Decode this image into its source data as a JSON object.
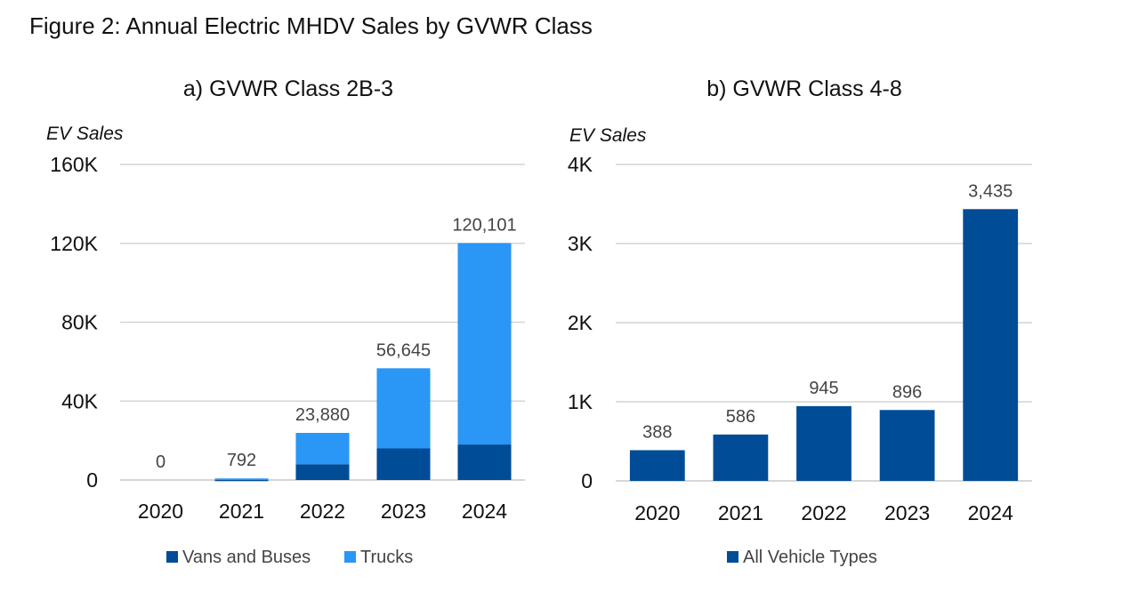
{
  "figure_title": "Figure 2: Annual Electric MHDV Sales by GVWR Class",
  "colors": {
    "vans_and_buses": "#004c97",
    "trucks": "#2a96f5",
    "all_vehicle_types": "#004c97"
  },
  "chart_data": [
    {
      "type": "bar",
      "stacked": true,
      "title": "a) GVWR Class 2B-3",
      "ylabel": "EV Sales",
      "xlabel": "",
      "categories": [
        "2020",
        "2021",
        "2022",
        "2023",
        "2024"
      ],
      "ylim": [
        0,
        160000
      ],
      "yticks": [
        0,
        40000,
        80000,
        120000,
        160000
      ],
      "ytick_labels": [
        "0",
        "40K",
        "80K",
        "120K",
        "160K"
      ],
      "series": [
        {
          "name": "Vans and Buses",
          "values": [
            0,
            100,
            8000,
            16000,
            18000
          ]
        },
        {
          "name": "Trucks",
          "values": [
            0,
            692,
            15880,
            40645,
            102101
          ]
        }
      ],
      "totals": [
        0,
        792,
        23880,
        56645,
        120101
      ],
      "total_labels": [
        "0",
        "792",
        "23,880",
        "56,645",
        "120,101"
      ],
      "grid": true,
      "legend": "bottom"
    },
    {
      "type": "bar",
      "title": "b) GVWR Class 4-8",
      "ylabel": "EV Sales",
      "xlabel": "",
      "categories": [
        "2020",
        "2021",
        "2022",
        "2023",
        "2024"
      ],
      "ylim": [
        0,
        4000
      ],
      "yticks": [
        0,
        1000,
        2000,
        3000,
        4000
      ],
      "ytick_labels": [
        "0",
        "1K",
        "2K",
        "3K",
        "4K"
      ],
      "series": [
        {
          "name": "All Vehicle Types",
          "values": [
            388,
            586,
            945,
            896,
            3435
          ]
        }
      ],
      "value_labels": [
        "388",
        "586",
        "945",
        "896",
        "3,435"
      ],
      "grid": true,
      "legend": "bottom"
    }
  ]
}
